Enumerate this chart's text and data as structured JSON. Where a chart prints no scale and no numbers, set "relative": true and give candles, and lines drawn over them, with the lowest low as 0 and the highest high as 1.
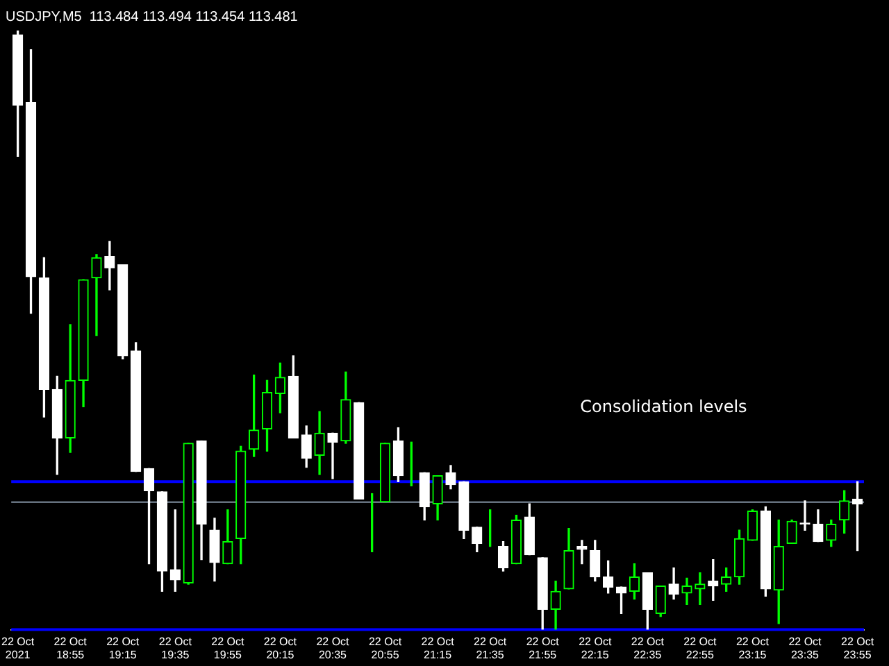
{
  "chart_data": {
    "type": "candlestick",
    "title": "USDJPY,M5  113.484 113.494 113.454 113.481",
    "relative": true,
    "color": "#00ff00",
    "colors": [
      "#ffffff",
      "#ffffff",
      "#ffffff",
      "#ffffff",
      "#00ff00",
      "#00ff00",
      "#00ff00",
      "#ffffff",
      "#ffffff",
      "#ffffff",
      "#ffffff",
      "#ffffff",
      "#ffffff",
      "#00ff00",
      "#ffffff",
      "#ffffff",
      "#00ff00",
      "#00ff00",
      "#00ff00",
      "#00ff00",
      "#00ff00",
      "#ffffff",
      "#ffffff",
      "#00ff00",
      "#ffffff",
      "#00ff00",
      "#ffffff",
      "#00ff00",
      "#00ff00",
      "#ffffff",
      "#00ff00",
      "#ffffff",
      "#00ff00",
      "#ffffff",
      "#ffffff",
      "#ffffff",
      "#00ff00",
      "#ffffff",
      "#00ff00",
      "#ffffff",
      "#ffffff",
      "#00ff00",
      "#00ff00",
      "#ffffff",
      "#ffffff",
      "#ffffff",
      "#ffffff",
      "#00ff00",
      "#ffffff",
      "#00ff00",
      "#ffffff",
      "#00ff00",
      "#00ff00",
      "#ffffff",
      "#00ff00",
      "#00ff00",
      "#00ff00",
      "#ffffff",
      "#00ff00",
      "#00ff00",
      "#ffffff",
      "#ffffff",
      "#00ff00",
      "#00ff00",
      "#ffffff"
    ],
    "legend": false,
    "grid": false,
    "categories": [
      "22 Oct 2021",
      null,
      null,
      null,
      "22 Oct 18:55",
      null,
      null,
      null,
      "22 Oct 19:15",
      null,
      null,
      null,
      "22 Oct 19:35",
      null,
      null,
      null,
      "22 Oct 19:55",
      null,
      null,
      null,
      "22 Oct 20:15",
      null,
      null,
      null,
      "22 Oct 20:35",
      null,
      null,
      null,
      "22 Oct 20:55",
      null,
      null,
      null,
      "22 Oct 21:15",
      null,
      null,
      null,
      "22 Oct 21:35",
      null,
      null,
      null,
      "22 Oct 21:55",
      null,
      null,
      null,
      "22 Oct 22:15",
      null,
      null,
      null,
      "22 Oct 22:35",
      null,
      null,
      null,
      "22 Oct 22:55",
      null,
      null,
      null,
      "22 Oct 23:15",
      null,
      null,
      null,
      "22 Oct 23:35",
      null,
      null,
      null,
      "22 Oct 23:55"
    ],
    "ohlc": [
      [
        0.993,
        1,
        0.79,
        0.875
      ],
      [
        0.88,
        0.968,
        0.528,
        0.589
      ],
      [
        0.587,
        0.621,
        0.355,
        0.401
      ],
      [
        0.401,
        0.423,
        0.259,
        0.32
      ],
      [
        0.32,
        0.509,
        0.296,
        0.416
      ],
      [
        0.416,
        0.584,
        0.372,
        0.584
      ],
      [
        0.587,
        0.626,
        0.491,
        0.621
      ],
      [
        0.623,
        0.648,
        0.567,
        0.604
      ],
      [
        0.609,
        0.609,
        0.452,
        0.457
      ],
      [
        0.465,
        0.479,
        0.264,
        0.264
      ],
      [
        0.269,
        0.269,
        0.11,
        0.232
      ],
      [
        0.23,
        0.23,
        0.064,
        0.098
      ],
      [
        0.1,
        0.2,
        0.064,
        0.083
      ],
      [
        0.078,
        0.311,
        0.076,
        0.311
      ],
      [
        0.315,
        0.315,
        0.117,
        0.176
      ],
      [
        0.166,
        0.186,
        0.081,
        0.112
      ],
      [
        0.11,
        0.2,
        0.11,
        0.147
      ],
      [
        0.152,
        0.306,
        0.11,
        0.298
      ],
      [
        0.301,
        0.425,
        0.289,
        0.333
      ],
      [
        0.335,
        0.416,
        0.298,
        0.396
      ],
      [
        0.394,
        0.445,
        0.362,
        0.421
      ],
      [
        0.423,
        0.457,
        0.32,
        0.32
      ],
      [
        0.325,
        0.34,
        0.271,
        0.286
      ],
      [
        0.291,
        0.364,
        0.259,
        0.328
      ],
      [
        0.328,
        0.328,
        0.252,
        0.313
      ],
      [
        0.315,
        0.43,
        0.311,
        0.384
      ],
      [
        0.379,
        0.379,
        0.218,
        0.218
      ],
      [
        0.213,
        0.227,
        0.13,
        0.213
      ],
      [
        0.213,
        0.311,
        0.213,
        0.311
      ],
      [
        0.315,
        0.337,
        0.247,
        0.257
      ],
      [
        0.257,
        0.313,
        0.24,
        0.257
      ],
      [
        0.262,
        0.262,
        0.183,
        0.205
      ],
      [
        0.21,
        0.257,
        0.183,
        0.257
      ],
      [
        0.262,
        0.274,
        0.235,
        0.242
      ],
      [
        0.247,
        0.247,
        0.152,
        0.166
      ],
      [
        0.171,
        0.171,
        0.13,
        0.144
      ],
      [
        0.142,
        0.2,
        0.139,
        0.142
      ],
      [
        0.139,
        0.147,
        0.098,
        0.103
      ],
      [
        0.11,
        0.191,
        0.11,
        0.183
      ],
      [
        0.188,
        0.21,
        0.125,
        0.125
      ],
      [
        0.12,
        0.12,
        0,
        0.034
      ],
      [
        0.034,
        0.081,
        0,
        0.064
      ],
      [
        0.068,
        0.169,
        0.068,
        0.132
      ],
      [
        0.139,
        0.149,
        0.11,
        0.134
      ],
      [
        0.132,
        0.149,
        0.081,
        0.088
      ],
      [
        0.088,
        0.115,
        0.061,
        0.071
      ],
      [
        0.071,
        0.071,
        0.027,
        0.061
      ],
      [
        0.064,
        0.11,
        0.051,
        0.088
      ],
      [
        0.095,
        0.095,
        0,
        0.034
      ],
      [
        0.027,
        0.073,
        0.022,
        0.073
      ],
      [
        0.076,
        0.103,
        0.051,
        0.059
      ],
      [
        0.061,
        0.086,
        0.042,
        0.073
      ],
      [
        0.068,
        0.095,
        0.042,
        0.076
      ],
      [
        0.081,
        0.117,
        0.049,
        0.073
      ],
      [
        0.076,
        0.103,
        0.064,
        0.088
      ],
      [
        0.088,
        0.166,
        0.076,
        0.152
      ],
      [
        0.149,
        0.2,
        0.149,
        0.198
      ],
      [
        0.198,
        0.205,
        0.056,
        0.068
      ],
      [
        0.066,
        0.183,
        0.01,
        0.139
      ],
      [
        0.144,
        0.183,
        0.144,
        0.181
      ],
      [
        0.178,
        0.215,
        0.166,
        0.176
      ],
      [
        0.176,
        0.2,
        0.147,
        0.147
      ],
      [
        0.149,
        0.183,
        0.139,
        0.176
      ],
      [
        0.183,
        0.232,
        0.161,
        0.215
      ],
      [
        0.218,
        0.247,
        0.132,
        0.21
      ]
    ],
    "ref_lines": [
      {
        "axis": "y",
        "value": 0.247,
        "color": "#0000ff"
      },
      {
        "axis": "y",
        "value": 0,
        "color": "#0000ff"
      },
      {
        "axis": "y",
        "value": 0.213,
        "color": "#8090a0"
      }
    ],
    "annotations": [
      "Consolidation levels"
    ]
  }
}
